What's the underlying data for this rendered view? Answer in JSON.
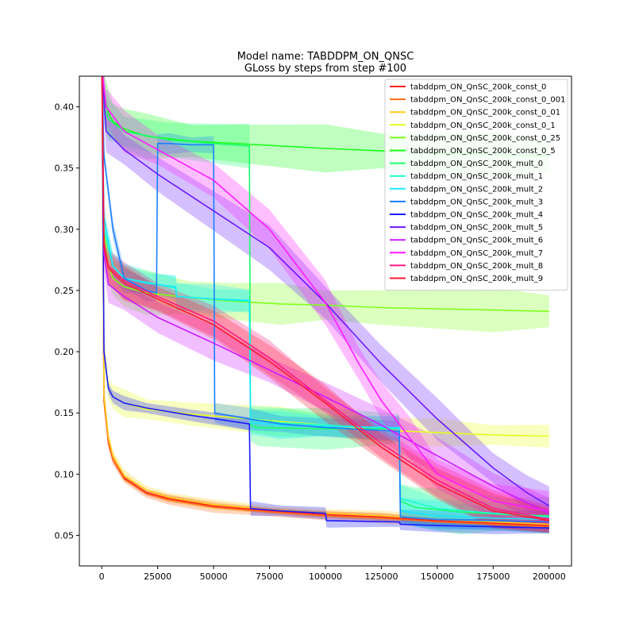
{
  "chart_data": {
    "type": "line",
    "title": "Model name: TABDDPM_ON_QNSC",
    "subtitle": "GLoss by steps from step #100",
    "xlabel": "",
    "ylabel": "",
    "xlim": [
      -10000,
      210000
    ],
    "ylim": [
      0.025,
      0.425
    ],
    "x_ticks": [
      0,
      25000,
      50000,
      75000,
      100000,
      125000,
      150000,
      175000,
      200000
    ],
    "x_tick_labels": [
      "0",
      "25000",
      "50000",
      "75000",
      "100000",
      "125000",
      "150000",
      "175000",
      "200000"
    ],
    "y_ticks": [
      0.05,
      0.1,
      0.15,
      0.2,
      0.25,
      0.3,
      0.35,
      0.4
    ],
    "y_tick_labels": [
      "0.05",
      "0.10",
      "0.15",
      "0.20",
      "0.25",
      "0.30",
      "0.35",
      "0.40"
    ],
    "grid": false,
    "legend_position": "top-right",
    "shaded_band": "noisy raw loss shown as translucent band around each smoothed line",
    "series": [
      {
        "name": "tabddpm_ON_QnSC_200k_const_0",
        "color": "#ff1f1f",
        "spread": 0.002,
        "points": [
          [
            100,
            0.43
          ],
          [
            1000,
            0.16
          ],
          [
            3000,
            0.125
          ],
          [
            5000,
            0.112
          ],
          [
            10000,
            0.097
          ],
          [
            20000,
            0.085
          ],
          [
            30000,
            0.08
          ],
          [
            50000,
            0.074
          ],
          [
            75000,
            0.07
          ],
          [
            100000,
            0.067
          ],
          [
            125000,
            0.065
          ],
          [
            150000,
            0.062
          ],
          [
            175000,
            0.06
          ],
          [
            200000,
            0.058
          ]
        ]
      },
      {
        "name": "tabddpm_ON_QnSC_200k_const_0_001",
        "color": "#ff6a1a",
        "spread": 0.003,
        "points": [
          [
            100,
            0.43
          ],
          [
            1000,
            0.16
          ],
          [
            3000,
            0.125
          ],
          [
            5000,
            0.112
          ],
          [
            10000,
            0.096
          ],
          [
            20000,
            0.084
          ],
          [
            30000,
            0.079
          ],
          [
            50000,
            0.073
          ],
          [
            75000,
            0.069
          ],
          [
            100000,
            0.066
          ],
          [
            125000,
            0.064
          ],
          [
            150000,
            0.061
          ],
          [
            175000,
            0.059
          ],
          [
            200000,
            0.057
          ]
        ]
      },
      {
        "name": "tabddpm_ON_QnSC_200k_const_0_01",
        "color": "#ffcc1a",
        "spread": 0.003,
        "points": [
          [
            100,
            0.43
          ],
          [
            1000,
            0.165
          ],
          [
            3000,
            0.13
          ],
          [
            5000,
            0.115
          ],
          [
            10000,
            0.099
          ],
          [
            20000,
            0.087
          ],
          [
            30000,
            0.081
          ],
          [
            50000,
            0.075
          ],
          [
            75000,
            0.071
          ],
          [
            100000,
            0.068
          ],
          [
            125000,
            0.066
          ],
          [
            150000,
            0.063
          ],
          [
            175000,
            0.061
          ],
          [
            200000,
            0.059
          ]
        ]
      },
      {
        "name": "tabddpm_ON_QnSC_200k_const_0_1",
        "color": "#e6ff1a",
        "spread": 0.008,
        "points": [
          [
            100,
            0.43
          ],
          [
            1000,
            0.2
          ],
          [
            3000,
            0.17
          ],
          [
            5000,
            0.163
          ],
          [
            10000,
            0.158
          ],
          [
            20000,
            0.153
          ],
          [
            40000,
            0.149
          ],
          [
            60000,
            0.146
          ],
          [
            80000,
            0.143
          ],
          [
            100000,
            0.14
          ],
          [
            125000,
            0.136
          ],
          [
            150000,
            0.134
          ],
          [
            175000,
            0.132
          ],
          [
            200000,
            0.131
          ]
        ]
      },
      {
        "name": "tabddpm_ON_QnSC_200k_const_0_25",
        "color": "#7fff1a",
        "spread": 0.012,
        "points": [
          [
            100,
            0.43
          ],
          [
            1000,
            0.3
          ],
          [
            3000,
            0.27
          ],
          [
            5000,
            0.26
          ],
          [
            10000,
            0.253
          ],
          [
            20000,
            0.248
          ],
          [
            40000,
            0.244
          ],
          [
            60000,
            0.241
          ],
          [
            80000,
            0.239
          ],
          [
            100000,
            0.238
          ],
          [
            125000,
            0.236
          ],
          [
            150000,
            0.235
          ],
          [
            175000,
            0.234
          ],
          [
            200000,
            0.233
          ]
        ]
      },
      {
        "name": "tabddpm_ON_QnSC_200k_const_0_5",
        "color": "#1aff1a",
        "spread": 0.013,
        "points": [
          [
            100,
            0.43
          ],
          [
            1000,
            0.41
          ],
          [
            3000,
            0.395
          ],
          [
            5000,
            0.388
          ],
          [
            10000,
            0.382
          ],
          [
            20000,
            0.376
          ],
          [
            40000,
            0.372
          ],
          [
            60000,
            0.37
          ],
          [
            80000,
            0.368
          ],
          [
            100000,
            0.366
          ],
          [
            125000,
            0.364
          ],
          [
            150000,
            0.362
          ],
          [
            175000,
            0.361
          ],
          [
            200000,
            0.36
          ]
        ]
      },
      {
        "name": "tabddpm_ON_QnSC_200k_mult_0",
        "color": "#1aff6a",
        "spread": 0.012,
        "points": [
          [
            100,
            0.43
          ],
          [
            1000,
            0.4
          ],
          [
            3000,
            0.39
          ],
          [
            10000,
            0.38
          ],
          [
            30000,
            0.373
          ],
          [
            50000,
            0.37
          ],
          [
            66000,
            0.368
          ],
          [
            66500,
            0.14
          ],
          [
            70000,
            0.138
          ],
          [
            100000,
            0.137
          ],
          [
            133000,
            0.137
          ],
          [
            133500,
            0.078
          ],
          [
            140000,
            0.073
          ],
          [
            160000,
            0.069
          ],
          [
            180000,
            0.067
          ],
          [
            200000,
            0.066
          ]
        ]
      },
      {
        "name": "tabddpm_ON_QnSC_200k_mult_1",
        "color": "#1affcc",
        "spread": 0.008,
        "points": [
          [
            100,
            0.43
          ],
          [
            1000,
            0.3
          ],
          [
            5000,
            0.27
          ],
          [
            10000,
            0.26
          ],
          [
            25000,
            0.255
          ],
          [
            33000,
            0.252
          ],
          [
            33500,
            0.245
          ],
          [
            50000,
            0.243
          ],
          [
            66000,
            0.241
          ],
          [
            66500,
            0.145
          ],
          [
            80000,
            0.142
          ],
          [
            100000,
            0.14
          ],
          [
            133000,
            0.137
          ],
          [
            133500,
            0.08
          ],
          [
            150000,
            0.072
          ],
          [
            175000,
            0.068
          ],
          [
            200000,
            0.065
          ]
        ]
      },
      {
        "name": "tabddpm_ON_QnSC_200k_mult_2",
        "color": "#1ae6ff",
        "spread": 0.008,
        "points": [
          [
            100,
            0.43
          ],
          [
            1000,
            0.31
          ],
          [
            5000,
            0.27
          ],
          [
            10000,
            0.26
          ],
          [
            20000,
            0.256
          ],
          [
            33000,
            0.253
          ],
          [
            33500,
            0.245
          ],
          [
            50000,
            0.243
          ],
          [
            66000,
            0.242
          ],
          [
            66500,
            0.142
          ],
          [
            80000,
            0.14
          ],
          [
            100000,
            0.139
          ],
          [
            133000,
            0.138
          ],
          [
            133500,
            0.07
          ],
          [
            150000,
            0.066
          ],
          [
            175000,
            0.064
          ],
          [
            200000,
            0.063
          ]
        ]
      },
      {
        "name": "tabddpm_ON_QnSC_200k_mult_3",
        "color": "#1a80ff",
        "spread": 0.006,
        "points": [
          [
            100,
            0.43
          ],
          [
            1000,
            0.36
          ],
          [
            5000,
            0.3
          ],
          [
            10000,
            0.26
          ],
          [
            20000,
            0.25
          ],
          [
            24500,
            0.248
          ],
          [
            25000,
            0.37
          ],
          [
            30000,
            0.37
          ],
          [
            40000,
            0.369
          ],
          [
            50000,
            0.369
          ],
          [
            50500,
            0.15
          ],
          [
            66000,
            0.145
          ],
          [
            80000,
            0.141
          ],
          [
            100000,
            0.138
          ],
          [
            133000,
            0.135
          ],
          [
            133500,
            0.065
          ],
          [
            150000,
            0.063
          ],
          [
            175000,
            0.062
          ],
          [
            200000,
            0.061
          ]
        ]
      },
      {
        "name": "tabddpm_ON_QnSC_200k_mult_4",
        "color": "#1a1aff",
        "spread": 0.004,
        "points": [
          [
            100,
            0.43
          ],
          [
            1000,
            0.2
          ],
          [
            3000,
            0.17
          ],
          [
            5000,
            0.163
          ],
          [
            10000,
            0.158
          ],
          [
            20000,
            0.154
          ],
          [
            40000,
            0.148
          ],
          [
            66000,
            0.141
          ],
          [
            66500,
            0.072
          ],
          [
            80000,
            0.07
          ],
          [
            100000,
            0.068
          ],
          [
            100500,
            0.062
          ],
          [
            133000,
            0.061
          ],
          [
            133500,
            0.059
          ],
          [
            150000,
            0.058
          ],
          [
            175000,
            0.057
          ],
          [
            200000,
            0.056
          ]
        ]
      },
      {
        "name": "tabddpm_ON_QnSC_200k_mult_5",
        "color": "#6a1aff",
        "spread": 0.012,
        "points": [
          [
            100,
            0.43
          ],
          [
            2000,
            0.38
          ],
          [
            10000,
            0.365
          ],
          [
            25000,
            0.345
          ],
          [
            50000,
            0.315
          ],
          [
            75000,
            0.285
          ],
          [
            100000,
            0.24
          ],
          [
            125000,
            0.19
          ],
          [
            150000,
            0.145
          ],
          [
            175000,
            0.105
          ],
          [
            190000,
            0.085
          ],
          [
            200000,
            0.074
          ]
        ]
      },
      {
        "name": "tabddpm_ON_QnSC_200k_mult_6",
        "color": "#cc1aff",
        "spread": 0.01,
        "points": [
          [
            100,
            0.43
          ],
          [
            1000,
            0.28
          ],
          [
            3000,
            0.255
          ],
          [
            10000,
            0.245
          ],
          [
            25000,
            0.228
          ],
          [
            50000,
            0.207
          ],
          [
            75000,
            0.185
          ],
          [
            100000,
            0.163
          ],
          [
            125000,
            0.14
          ],
          [
            150000,
            0.115
          ],
          [
            175000,
            0.09
          ],
          [
            200000,
            0.068
          ]
        ]
      },
      {
        "name": "tabddpm_ON_QnSC_200k_mult_7",
        "color": "#ff1aff",
        "spread": 0.012,
        "points": [
          [
            100,
            0.43
          ],
          [
            2000,
            0.4
          ],
          [
            10000,
            0.38
          ],
          [
            25000,
            0.365
          ],
          [
            50000,
            0.34
          ],
          [
            75000,
            0.3
          ],
          [
            100000,
            0.24
          ],
          [
            115000,
            0.19
          ],
          [
            125000,
            0.16
          ],
          [
            137500,
            0.13
          ],
          [
            150000,
            0.1
          ],
          [
            175000,
            0.078
          ],
          [
            200000,
            0.07
          ]
        ]
      },
      {
        "name": "tabddpm_ON_QnSC_200k_mult_8",
        "color": "#ff1a80",
        "spread": 0.01,
        "points": [
          [
            100,
            0.43
          ],
          [
            1000,
            0.29
          ],
          [
            3000,
            0.27
          ],
          [
            10000,
            0.258
          ],
          [
            25000,
            0.245
          ],
          [
            50000,
            0.225
          ],
          [
            75000,
            0.195
          ],
          [
            100000,
            0.16
          ],
          [
            125000,
            0.125
          ],
          [
            150000,
            0.095
          ],
          [
            175000,
            0.072
          ],
          [
            200000,
            0.063
          ]
        ]
      },
      {
        "name": "tabddpm_ON_QnSC_200k_mult_9",
        "color": "#ff1a33",
        "spread": 0.01,
        "points": [
          [
            100,
            0.43
          ],
          [
            1000,
            0.285
          ],
          [
            3000,
            0.268
          ],
          [
            10000,
            0.256
          ],
          [
            25000,
            0.243
          ],
          [
            50000,
            0.222
          ],
          [
            75000,
            0.192
          ],
          [
            100000,
            0.158
          ],
          [
            125000,
            0.122
          ],
          [
            150000,
            0.092
          ],
          [
            175000,
            0.07
          ],
          [
            200000,
            0.062
          ]
        ]
      }
    ]
  }
}
